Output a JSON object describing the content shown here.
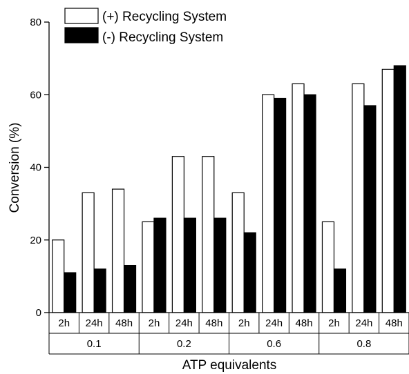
{
  "chart_data": {
    "type": "bar",
    "title": "",
    "xlabel": "ATP equivalents",
    "ylabel": "Conversion (%)",
    "ylim": [
      0,
      80
    ],
    "yticks": [
      0,
      20,
      40,
      60,
      80
    ],
    "groups": [
      "0.1",
      "0.2",
      "0.6",
      "0.8"
    ],
    "categories": [
      "2h",
      "24h",
      "48h",
      "2h",
      "24h",
      "48h",
      "2h",
      "24h",
      "48h",
      "2h",
      "24h",
      "48h"
    ],
    "series": [
      {
        "name": "(+) Recycling System",
        "color": "#ffffff",
        "values": [
          20,
          33,
          34,
          25,
          43,
          43,
          33,
          60,
          63,
          25,
          63,
          67
        ]
      },
      {
        "name": "(-) Recycling System",
        "color": "#000000",
        "values": [
          11,
          12,
          13,
          26,
          26,
          26,
          22,
          59,
          60,
          12,
          57,
          68
        ]
      }
    ],
    "legend_position": "top-left",
    "grid": false
  }
}
